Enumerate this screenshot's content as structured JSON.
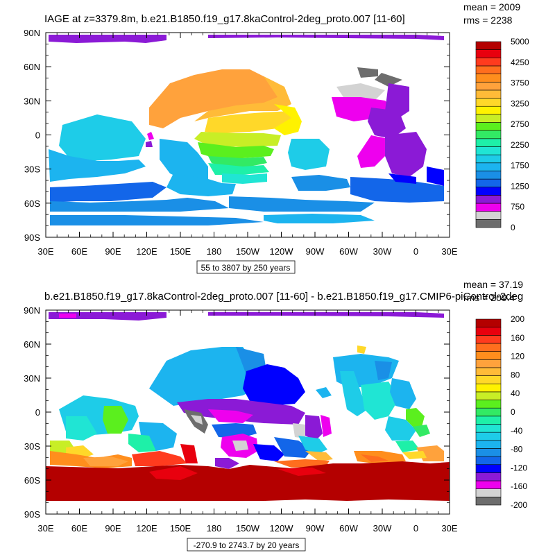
{
  "chart_data": [
    {
      "type": "heatmap",
      "title": "IAGE at z=3379.8m, b.e21.B1850.f19_g17.8kaControl-2deg_proto.007 [11-60]",
      "stats": {
        "mean": "mean = 2009",
        "rms": "rms = 2238"
      },
      "range_label": "55 to 3807 by 250 years",
      "x_ticks": [
        "30E",
        "60E",
        "90E",
        "120E",
        "150E",
        "180",
        "150W",
        "120W",
        "90W",
        "60W",
        "30W",
        "0",
        "30E"
      ],
      "y_ticks": [
        "90N",
        "60N",
        "30N",
        "0",
        "30S",
        "60S",
        "90S"
      ],
      "colorbar": {
        "colors": [
          "#6d6d6d",
          "#d3d3d3",
          "#ee00ee",
          "#8b1ad6",
          "#0000ff",
          "#1366e9",
          "#1a8fe6",
          "#1cb4ef",
          "#1ecce8",
          "#20e5d4",
          "#1ef0a8",
          "#32ea64",
          "#5bef1e",
          "#c8ee26",
          "#fff200",
          "#ffd829",
          "#ffbb38",
          "#ffa23c",
          "#ff8e1d",
          "#ff6e1e",
          "#ff3b1e",
          "#e8000e",
          "#b40000"
        ],
        "labels": [
          "0",
          "750",
          "1250",
          "1750",
          "2250",
          "2750",
          "3250",
          "3750",
          "4250",
          "5000"
        ]
      }
    },
    {
      "type": "heatmap",
      "title": "b.e21.B1850.f19_g17.8kaControl-2deg_proto.007 [11-60] - b.e21.B1850.f19_g17.CMIP6-piControl-2deg",
      "stats": {
        "mean": "mean = 37.19",
        "rms": "rms = 209.4"
      },
      "range_label": "-270.9 to 2743.7 by 20 years",
      "x_ticks": [
        "30E",
        "60E",
        "90E",
        "120E",
        "150E",
        "180",
        "150W",
        "120W",
        "90W",
        "60W",
        "30W",
        "0",
        "30E"
      ],
      "y_ticks": [
        "90N",
        "60N",
        "30N",
        "0",
        "30S",
        "60S",
        "90S"
      ],
      "colorbar": {
        "colors": [
          "#6d6d6d",
          "#d3d3d3",
          "#ee00ee",
          "#8b1ad6",
          "#0000ff",
          "#1366e9",
          "#1a8fe6",
          "#1cb4ef",
          "#1ecce8",
          "#20e5d4",
          "#1ef0a8",
          "#32ea64",
          "#5bef1e",
          "#c8ee26",
          "#fff200",
          "#ffd829",
          "#ffbb38",
          "#ffa23c",
          "#ff8e1d",
          "#ff6e1e",
          "#ff3b1e",
          "#e8000e",
          "#b40000"
        ],
        "labels": [
          "-200",
          "-160",
          "-120",
          "-80",
          "-40",
          "0",
          "40",
          "80",
          "120",
          "160",
          "200"
        ]
      }
    }
  ]
}
